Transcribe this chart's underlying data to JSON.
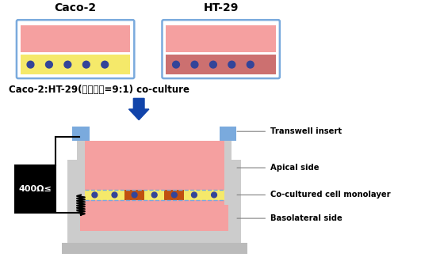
{
  "title_caco2": "Caco-2",
  "title_ht29": "HT-29",
  "subtitle": "Caco-2:HT-29(세포비율=9:1) co-culture",
  "label_transwell": "Transwell insert",
  "label_apical": "Apical side",
  "label_monolayer": "Co-cultured cell monolayer",
  "label_basolateral": "Basolateral side",
  "label_resistance": "400Ω≤",
  "color_pink": "#F5A0A0",
  "color_yellow": "#F5E96A",
  "color_blue_border": "#7AAADD",
  "color_gray": "#BBBBBB",
  "color_gray_light": "#CCCCCC",
  "color_gray_mid": "#AAAAAA",
  "color_orange_cell": "#C05010",
  "color_blue_cell": "#334499",
  "color_blue_arrow": "#1144AA",
  "color_black": "#000000",
  "color_white": "#FFFFFF",
  "color_dark_pink": "#CC7070",
  "bg_color": "#FFFFFF"
}
